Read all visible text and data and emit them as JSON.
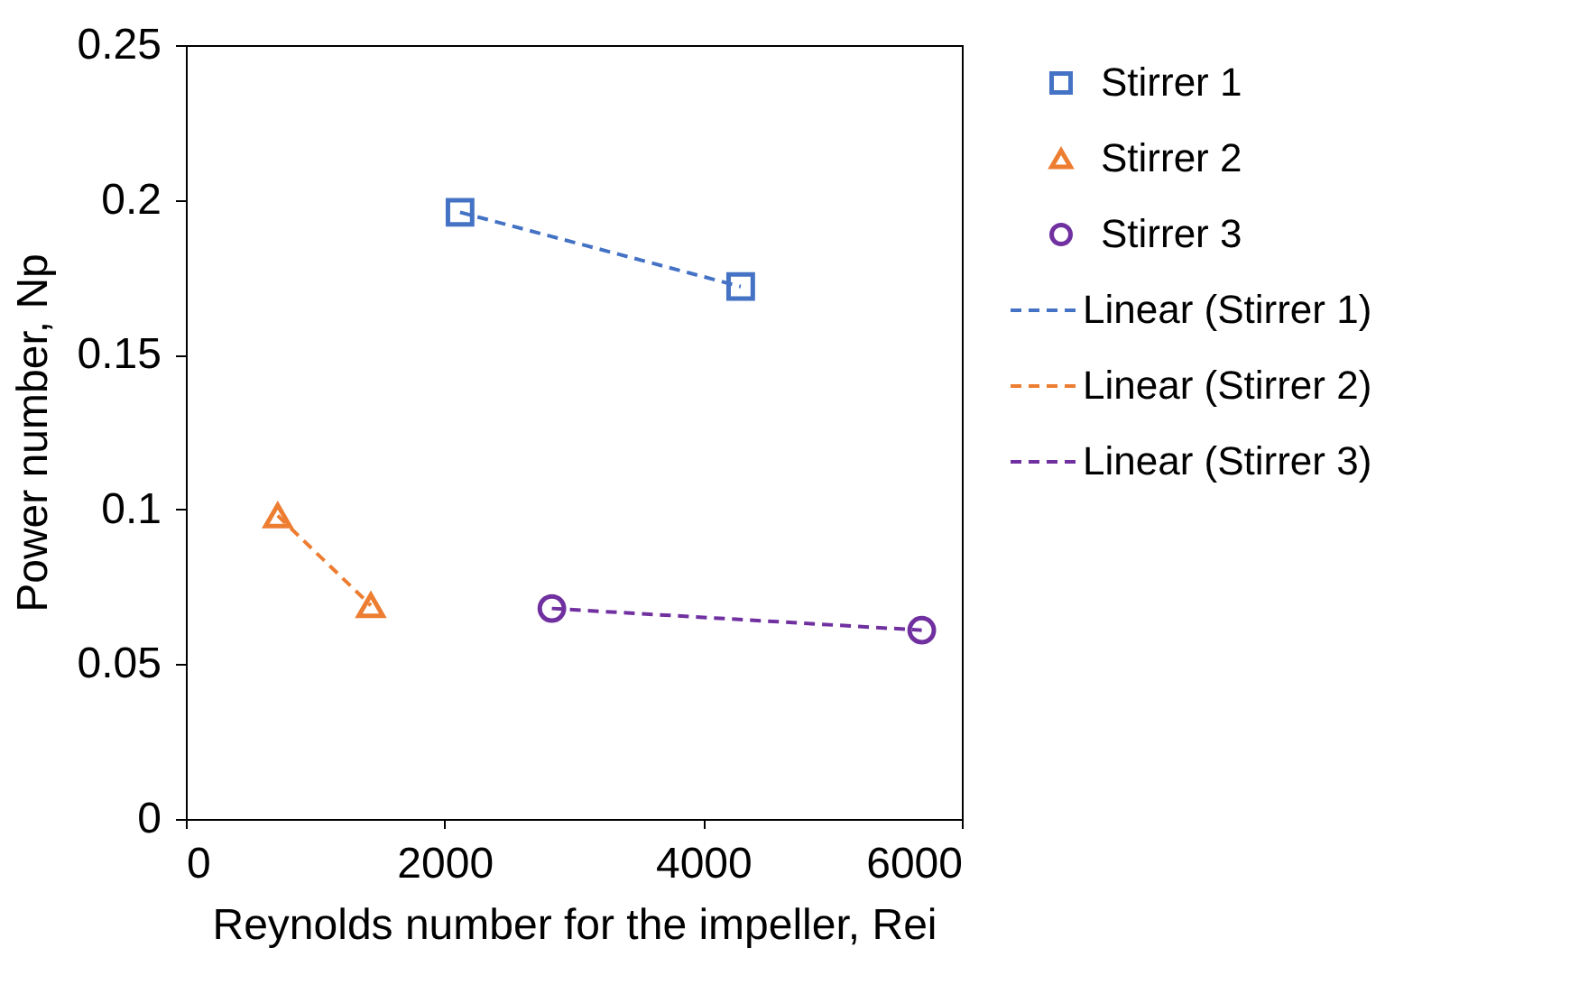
{
  "chart_data": {
    "type": "scatter",
    "xlabel": "Reynolds number for the impeller, Rei",
    "ylabel": "Power number, Np",
    "xlim": [
      0,
      6000
    ],
    "xticks": [
      0,
      2000,
      4000,
      6000
    ],
    "ylim": [
      0,
      0.25
    ],
    "yticks": [
      0,
      0.05,
      0.1,
      0.15,
      0.2,
      0.25
    ],
    "grid": false,
    "legend": "right",
    "series": [
      {
        "name": "Stirrer 1",
        "color": "#4472c4",
        "marker": "square",
        "x": [
          2120,
          4290
        ],
        "values": [
          0.196,
          0.172
        ]
      },
      {
        "name": "Stirrer 2",
        "color": "#ed7d31",
        "marker": "triangle",
        "x": [
          710,
          1430
        ],
        "values": [
          0.098,
          0.069
        ]
      },
      {
        "name": "Stirrer 3",
        "color": "#7030a0",
        "marker": "circle",
        "x": [
          2830,
          5690
        ],
        "values": [
          0.068,
          0.061
        ]
      },
      {
        "name": "Linear (Stirrer 1)",
        "type": "line",
        "line_style": "dashed",
        "marker": "none",
        "color": "#4472c4",
        "x": [
          2120,
          4290
        ],
        "values": [
          0.196,
          0.172
        ]
      },
      {
        "name": "Linear (Stirrer 2)",
        "type": "line",
        "line_style": "dashed",
        "marker": "none",
        "color": "#ed7d31",
        "x": [
          710,
          1430
        ],
        "values": [
          0.098,
          0.069
        ]
      },
      {
        "name": "Linear (Stirrer 3)",
        "type": "line",
        "line_style": "dashed",
        "marker": "none",
        "color": "#7030a0",
        "x": [
          2830,
          5690
        ],
        "values": [
          0.068,
          0.061
        ]
      }
    ]
  }
}
